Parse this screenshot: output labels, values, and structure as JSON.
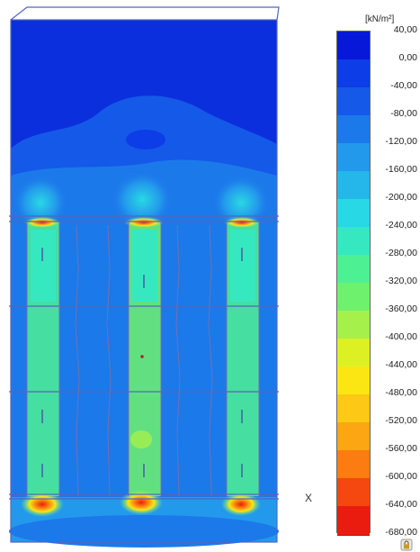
{
  "legend": {
    "unit": "[kN/m²]",
    "labels": [
      "40,00",
      "0,00",
      "-40,00",
      "-80,00",
      "-120,00",
      "-160,00",
      "-200,00",
      "-240,00",
      "-280,00",
      "-320,00",
      "-360,00",
      "-400,00",
      "-440,00",
      "-480,00",
      "-520,00",
      "-560,00",
      "-600,00",
      "-640,00",
      "-680,00"
    ],
    "colors": [
      "#0718d8",
      "#0d3de6",
      "#1559e8",
      "#1c79ea",
      "#2399ec",
      "#25b6ea",
      "#28d8e4",
      "#36e8c0",
      "#4ef094",
      "#6ef26e",
      "#a6f04c",
      "#dcf024",
      "#fbe614",
      "#fdc816",
      "#fca614",
      "#fb7c10",
      "#f44810",
      "#ea1c10"
    ]
  },
  "axis": {
    "x_label": "X"
  },
  "colors": {
    "background_field": "#0b33e0",
    "outline": "#5566bb"
  }
}
